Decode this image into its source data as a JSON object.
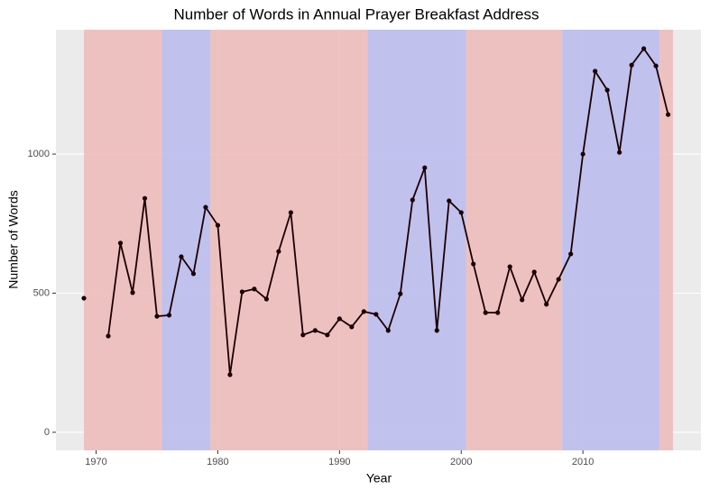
{
  "chart_data": {
    "type": "line",
    "title": "Number of Words in Annual Prayer Breakfast Address",
    "x_label": "Year",
    "y_label": "Number of Words",
    "x": [
      1969,
      1970,
      1971,
      1972,
      1973,
      1974,
      1975,
      1976,
      1977,
      1978,
      1979,
      1980,
      1981,
      1982,
      1983,
      1984,
      1985,
      1986,
      1987,
      1988,
      1989,
      1990,
      1991,
      1992,
      1993,
      1994,
      1995,
      1996,
      1997,
      1998,
      1999,
      2000,
      2001,
      2002,
      2003,
      2004,
      2005,
      2006,
      2007,
      2008,
      2009,
      2010,
      2011,
      2012,
      2013,
      2014,
      2015,
      2016,
      2017
    ],
    "series": [
      {
        "color": "#1a0000",
        "values": [
          482,
          null,
          346,
          680,
          502,
          841,
          417,
          421,
          631,
          570,
          809,
          744,
          207,
          505,
          515,
          479,
          650,
          790,
          350,
          366,
          350,
          408,
          379,
          434,
          424,
          366,
          498,
          835,
          951,
          366,
          832,
          790,
          605,
          430,
          430,
          595,
          476,
          576,
          460,
          550,
          641,
          1000,
          1298,
          1230,
          1006,
          1320,
          1379,
          1317,
          1142
        ]
      }
    ],
    "bands": [
      {
        "start": 1969,
        "end": 1975.4,
        "color": "#eebbbb"
      },
      {
        "start": 1975.4,
        "end": 1979.4,
        "color": "#bbbbee"
      },
      {
        "start": 1979.4,
        "end": 1992.3,
        "color": "#eebbbb"
      },
      {
        "start": 1992.3,
        "end": 2000.4,
        "color": "#bbbbee"
      },
      {
        "start": 2000.4,
        "end": 2008.3,
        "color": "#eebbbb"
      },
      {
        "start": 2008.3,
        "end": 2016.3,
        "color": "#bbbbee"
      },
      {
        "start": 2016.3,
        "end": 2017.4,
        "color": "#eebbbb"
      }
    ],
    "xlim": [
      1966.7,
      2019.7
    ],
    "xticks": [
      1970,
      1980,
      1990,
      2000,
      2010
    ],
    "ylim": [
      -65,
      1447
    ],
    "yticks": [
      0,
      500,
      1000
    ],
    "grid": true
  }
}
